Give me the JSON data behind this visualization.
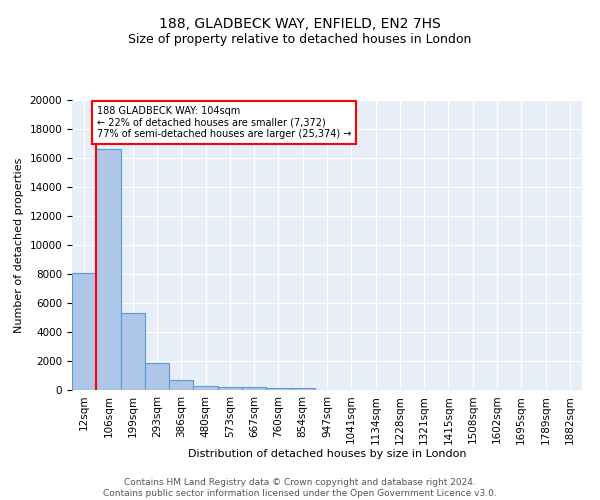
{
  "title": "188, GLADBECK WAY, ENFIELD, EN2 7HS",
  "subtitle": "Size of property relative to detached houses in London",
  "xlabel": "Distribution of detached houses by size in London",
  "ylabel": "Number of detached properties",
  "categories": [
    "12sqm",
    "106sqm",
    "199sqm",
    "293sqm",
    "386sqm",
    "480sqm",
    "573sqm",
    "667sqm",
    "760sqm",
    "854sqm",
    "947sqm",
    "1041sqm",
    "1134sqm",
    "1228sqm",
    "1321sqm",
    "1415sqm",
    "1508sqm",
    "1602sqm",
    "1695sqm",
    "1789sqm",
    "1882sqm"
  ],
  "values": [
    8100,
    16600,
    5300,
    1850,
    700,
    300,
    230,
    200,
    170,
    150,
    0,
    0,
    0,
    0,
    0,
    0,
    0,
    0,
    0,
    0,
    0
  ],
  "bar_color": "#aec6e8",
  "bar_edge_color": "#5b9bd5",
  "vline_color": "red",
  "annotation_text": "188 GLADBECK WAY: 104sqm\n← 22% of detached houses are smaller (7,372)\n77% of semi-detached houses are larger (25,374) →",
  "annotation_box_color": "white",
  "annotation_box_edge_color": "red",
  "ylim": [
    0,
    20000
  ],
  "yticks": [
    0,
    2000,
    4000,
    6000,
    8000,
    10000,
    12000,
    14000,
    16000,
    18000,
    20000
  ],
  "background_color": "#e8eef8",
  "footer_text": "Contains HM Land Registry data © Crown copyright and database right 2024.\nContains public sector information licensed under the Open Government Licence v3.0.",
  "title_fontsize": 10,
  "subtitle_fontsize": 9,
  "axis_fontsize": 8,
  "tick_fontsize": 7.5,
  "footer_fontsize": 6.5
}
